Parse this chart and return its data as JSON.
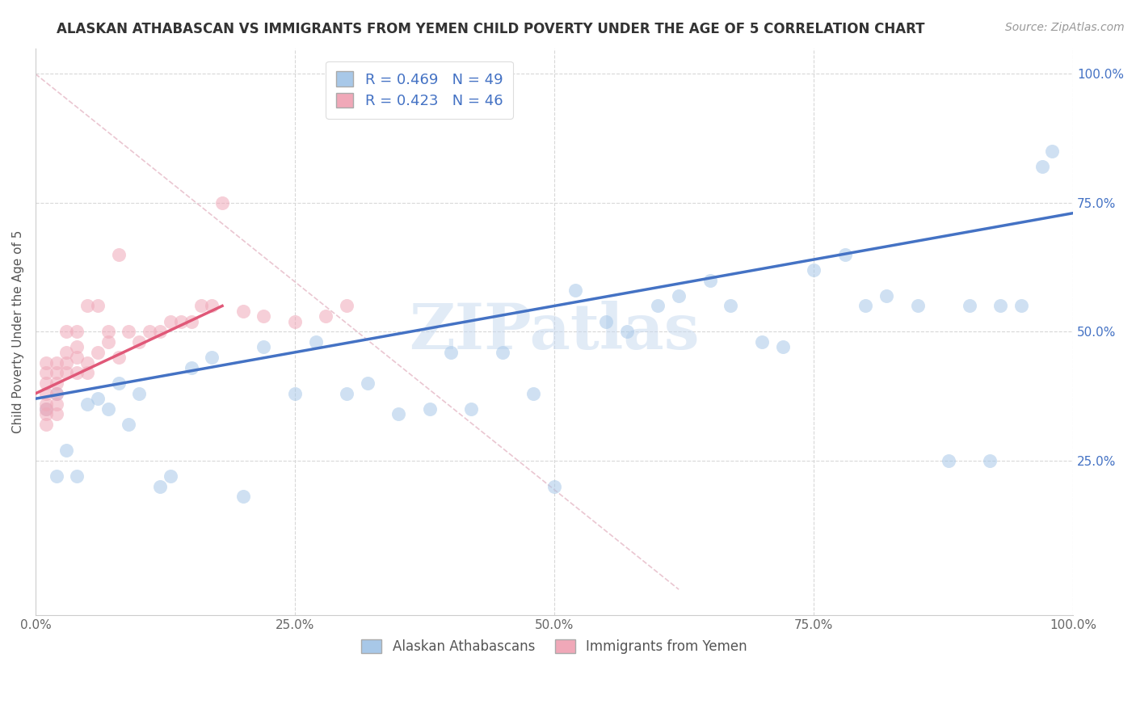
{
  "title": "ALASKAN ATHABASCAN VS IMMIGRANTS FROM YEMEN CHILD POVERTY UNDER THE AGE OF 5 CORRELATION CHART",
  "source": "Source: ZipAtlas.com",
  "ylabel": "Child Poverty Under the Age of 5",
  "watermark": "ZIPatlas",
  "blue_R": 0.469,
  "blue_N": 49,
  "pink_R": 0.423,
  "pink_N": 46,
  "blue_label": "Alaskan Athabascans",
  "pink_label": "Immigrants from Yemen",
  "xlim": [
    0,
    1
  ],
  "ylim": [
    -0.05,
    1.05
  ],
  "xtick_labels": [
    "0.0%",
    "",
    "",
    "",
    "",
    "25.0%",
    "",
    "",
    "",
    "",
    "50.0%",
    "",
    "",
    "",
    "",
    "75.0%",
    "",
    "",
    "",
    "",
    "100.0%"
  ],
  "xtick_vals": [
    0.0,
    0.05,
    0.1,
    0.15,
    0.2,
    0.25,
    0.3,
    0.35,
    0.4,
    0.45,
    0.5,
    0.55,
    0.6,
    0.65,
    0.7,
    0.75,
    0.8,
    0.85,
    0.9,
    0.95,
    1.0
  ],
  "ytick_vals_right": [
    0.25,
    0.5,
    0.75,
    1.0
  ],
  "ytick_labels_right": [
    "25.0%",
    "50.0%",
    "75.0%",
    "100.0%"
  ],
  "ytick_vals_left": [],
  "blue_color": "#a8c8e8",
  "pink_color": "#f0a8b8",
  "blue_line_color": "#4472c4",
  "pink_line_color": "#e05878",
  "diag_line_color": "#e8c0cc",
  "grid_color": "#d8d8d8",
  "blue_scatter_x": [
    0.01,
    0.02,
    0.02,
    0.03,
    0.04,
    0.05,
    0.06,
    0.07,
    0.08,
    0.09,
    0.1,
    0.12,
    0.13,
    0.15,
    0.17,
    0.2,
    0.22,
    0.25,
    0.27,
    0.3,
    0.32,
    0.35,
    0.38,
    0.4,
    0.42,
    0.45,
    0.48,
    0.5,
    0.52,
    0.55,
    0.57,
    0.6,
    0.62,
    0.65,
    0.67,
    0.7,
    0.72,
    0.75,
    0.78,
    0.8,
    0.82,
    0.85,
    0.88,
    0.9,
    0.92,
    0.93,
    0.95,
    0.97,
    0.98
  ],
  "blue_scatter_y": [
    0.35,
    0.22,
    0.38,
    0.27,
    0.22,
    0.36,
    0.37,
    0.35,
    0.4,
    0.32,
    0.38,
    0.2,
    0.22,
    0.43,
    0.45,
    0.18,
    0.47,
    0.38,
    0.48,
    0.38,
    0.4,
    0.34,
    0.35,
    0.46,
    0.35,
    0.46,
    0.38,
    0.2,
    0.58,
    0.52,
    0.5,
    0.55,
    0.57,
    0.6,
    0.55,
    0.48,
    0.47,
    0.62,
    0.65,
    0.55,
    0.57,
    0.55,
    0.25,
    0.55,
    0.25,
    0.55,
    0.55,
    0.82,
    0.85
  ],
  "pink_scatter_x": [
    0.01,
    0.01,
    0.01,
    0.01,
    0.01,
    0.01,
    0.01,
    0.01,
    0.02,
    0.02,
    0.02,
    0.02,
    0.02,
    0.02,
    0.03,
    0.03,
    0.03,
    0.03,
    0.04,
    0.04,
    0.04,
    0.04,
    0.05,
    0.05,
    0.05,
    0.06,
    0.06,
    0.07,
    0.07,
    0.08,
    0.08,
    0.09,
    0.1,
    0.11,
    0.12,
    0.13,
    0.14,
    0.15,
    0.16,
    0.17,
    0.18,
    0.2,
    0.22,
    0.25,
    0.28,
    0.3
  ],
  "pink_scatter_y": [
    0.38,
    0.4,
    0.42,
    0.44,
    0.36,
    0.35,
    0.34,
    0.32,
    0.4,
    0.38,
    0.36,
    0.34,
    0.42,
    0.44,
    0.42,
    0.44,
    0.46,
    0.5,
    0.45,
    0.42,
    0.47,
    0.5,
    0.42,
    0.44,
    0.55,
    0.46,
    0.55,
    0.48,
    0.5,
    0.45,
    0.65,
    0.5,
    0.48,
    0.5,
    0.5,
    0.52,
    0.52,
    0.52,
    0.55,
    0.55,
    0.75,
    0.54,
    0.53,
    0.52,
    0.53,
    0.55
  ],
  "blue_line_x": [
    0.0,
    1.0
  ],
  "blue_line_y": [
    0.37,
    0.73
  ],
  "pink_line_x": [
    0.0,
    0.18
  ],
  "pink_line_y": [
    0.38,
    0.55
  ],
  "diag_line_x": [
    0.0,
    0.62
  ],
  "diag_line_y": [
    1.0,
    0.0
  ]
}
